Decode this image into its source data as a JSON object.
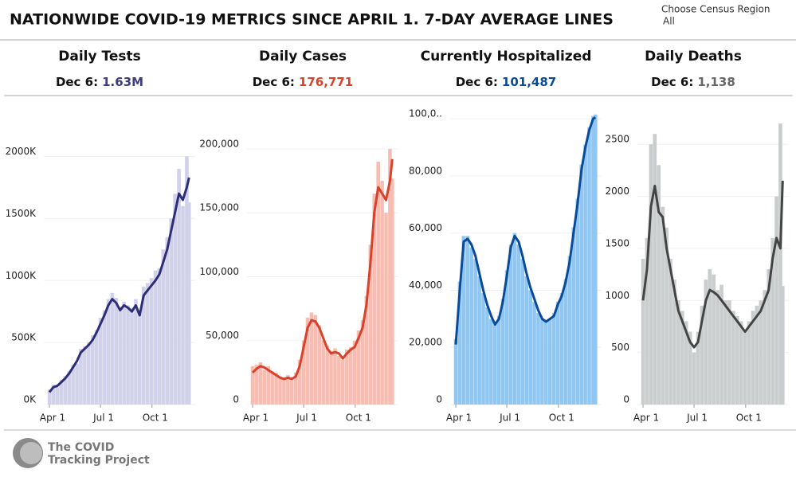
{
  "header": {
    "title": "NATIONWIDE COVID-19 METRICS SINCE APRIL 1. 7-DAY AVERAGE LINES",
    "region_label": "Choose Census Region",
    "region_value": "All"
  },
  "chart_data": [
    {
      "type": "bar_line",
      "title": "Daily Tests",
      "date_label": "Dec 6:",
      "latest_value": "1.63M",
      "x": [
        0,
        7,
        14,
        21,
        28,
        35,
        42,
        49,
        56,
        63,
        70,
        77,
        84,
        91,
        98,
        105,
        112,
        119,
        126,
        133,
        140,
        147,
        154,
        161,
        168,
        175,
        182,
        189,
        196,
        203,
        210,
        217,
        224,
        231,
        238,
        245,
        249
      ],
      "values": [
        120000,
        160000,
        140000,
        200000,
        230000,
        270000,
        320000,
        330000,
        450000,
        470000,
        500000,
        560000,
        600000,
        700000,
        760000,
        850000,
        900000,
        860000,
        790000,
        830000,
        800000,
        780000,
        850000,
        740000,
        950000,
        980000,
        1020000,
        1080000,
        1100000,
        1250000,
        1350000,
        1500000,
        1700000,
        1900000,
        1600000,
        2000000,
        1630000
      ],
      "average": [
        100000,
        140000,
        150000,
        180000,
        210000,
        250000,
        300000,
        350000,
        420000,
        450000,
        480000,
        520000,
        580000,
        650000,
        720000,
        800000,
        850000,
        820000,
        760000,
        800000,
        780000,
        750000,
        800000,
        720000,
        880000,
        920000,
        960000,
        1000000,
        1050000,
        1150000,
        1250000,
        1400000,
        1550000,
        1700000,
        1650000,
        1750000,
        1830000
      ],
      "xlim": [
        -10,
        260
      ],
      "xticks": [
        {
          "value": 0,
          "label": "Apr 1"
        },
        {
          "value": 91,
          "label": "Jul 1"
        },
        {
          "value": 183,
          "label": "Oct 1"
        }
      ],
      "ylim": [
        0,
        2350000
      ],
      "yticks": [
        {
          "value": 0,
          "label": "0K"
        },
        {
          "value": 500000,
          "label": "500K"
        },
        {
          "value": 1000000,
          "label": "1000K"
        },
        {
          "value": 1500000,
          "label": "1500K"
        },
        {
          "value": 2000000,
          "label": "2000K"
        }
      ],
      "bar_color": "#d1d1ea",
      "line_color": "#2e2e78",
      "value_color": "#3b3b7e",
      "grid": true
    },
    {
      "type": "bar_line",
      "title": "Daily Cases",
      "date_label": "Dec 6:",
      "latest_value": "176,771",
      "x": [
        0,
        7,
        14,
        21,
        28,
        35,
        42,
        49,
        56,
        63,
        70,
        77,
        84,
        91,
        98,
        105,
        112,
        119,
        126,
        133,
        140,
        147,
        154,
        161,
        168,
        175,
        182,
        189,
        196,
        203,
        210,
        217,
        224,
        231,
        238,
        245,
        249
      ],
      "values": [
        30000,
        31000,
        33000,
        27000,
        30000,
        26000,
        25000,
        22000,
        21000,
        23000,
        19000,
        25000,
        35000,
        50000,
        68000,
        72000,
        70000,
        62000,
        50000,
        46000,
        42000,
        44000,
        38000,
        35000,
        43000,
        45000,
        50000,
        58000,
        66000,
        85000,
        125000,
        165000,
        190000,
        175000,
        150000,
        200000,
        176771
      ],
      "average": [
        25000,
        28000,
        30000,
        29000,
        27000,
        25000,
        23000,
        21000,
        20000,
        21000,
        20000,
        22000,
        30000,
        45000,
        60000,
        66000,
        65000,
        60000,
        52000,
        44000,
        40000,
        41000,
        40000,
        36000,
        40000,
        43000,
        45000,
        52000,
        60000,
        78000,
        110000,
        150000,
        170000,
        165000,
        160000,
        175000,
        192000
      ],
      "xlim": [
        -10,
        260
      ],
      "xticks": [
        {
          "value": 0,
          "label": "Apr 1"
        },
        {
          "value": 91,
          "label": "Jul 1"
        },
        {
          "value": 183,
          "label": "Oct 1"
        }
      ],
      "ylim": [
        0,
        228000
      ],
      "yticks": [
        0,
        {
          "value": 50000,
          "label": "50,000"
        },
        {
          "value": 100000,
          "label": "100,000"
        },
        {
          "value": 150000,
          "label": "150,000"
        },
        {
          "value": 200000,
          "label": "200,000"
        }
      ],
      "bar_color": "#f8bdb2",
      "line_color": "#d9412a",
      "value_color": "#d9412a",
      "grid": true
    },
    {
      "type": "bar_line",
      "title": "Currently Hospitalized",
      "date_label": "Dec 6:",
      "latest_value": "101,487",
      "x": [
        0,
        7,
        14,
        21,
        28,
        35,
        42,
        49,
        56,
        63,
        70,
        77,
        84,
        91,
        98,
        105,
        112,
        119,
        126,
        133,
        140,
        147,
        154,
        161,
        168,
        175,
        182,
        189,
        196,
        203,
        210,
        217,
        224,
        231,
        238,
        245,
        249
      ],
      "values": [
        23000,
        43000,
        59000,
        59000,
        55000,
        51000,
        45000,
        39000,
        34000,
        30000,
        28000,
        31000,
        37000,
        47000,
        56000,
        60000,
        56000,
        51000,
        45000,
        40000,
        36000,
        32000,
        30000,
        29000,
        30000,
        32000,
        36000,
        39000,
        44000,
        52000,
        62000,
        72000,
        84000,
        91000,
        97000,
        101000,
        101487
      ],
      "average": [
        21000,
        40000,
        57000,
        58000,
        56000,
        52000,
        46000,
        40000,
        35000,
        31000,
        28000,
        30000,
        36000,
        45000,
        55000,
        59000,
        57000,
        52000,
        46000,
        41000,
        37000,
        33000,
        30000,
        29000,
        30000,
        31000,
        35000,
        38000,
        43000,
        50000,
        60000,
        70000,
        82000,
        90000,
        96000,
        100000,
        100500
      ],
      "xlim": [
        -10,
        260
      ],
      "xticks": [
        {
          "value": 0,
          "label": "Apr 1"
        },
        {
          "value": 91,
          "label": "Jul 1"
        },
        {
          "value": 183,
          "label": "Oct 1"
        }
      ],
      "ylim": [
        0,
        102000
      ],
      "yticks": [
        0,
        {
          "value": 20000,
          "label": "20,000"
        },
        {
          "value": 40000,
          "label": "40,000"
        },
        {
          "value": 60000,
          "label": "60,000"
        },
        {
          "value": 80000,
          "label": "80,000"
        },
        {
          "value": 100000,
          "label": "100,0.."
        }
      ],
      "bar_color": "#8fc7f2",
      "line_color": "#0a4a9a",
      "value_color": "#0a4a9a",
      "grid": true
    },
    {
      "type": "bar_line",
      "title": "Daily Deaths",
      "date_label": "Dec 6:",
      "latest_value": "1,138",
      "x": [
        0,
        7,
        14,
        21,
        28,
        35,
        42,
        49,
        56,
        63,
        70,
        77,
        84,
        91,
        98,
        105,
        112,
        119,
        126,
        133,
        140,
        147,
        154,
        161,
        168,
        175,
        182,
        189,
        196,
        203,
        210,
        217,
        224,
        231,
        238,
        245,
        249
      ],
      "values": [
        1400,
        1600,
        2500,
        2600,
        2300,
        1900,
        1700,
        1400,
        1200,
        1000,
        900,
        800,
        700,
        500,
        700,
        950,
        1200,
        1300,
        1250,
        1100,
        1150,
        1000,
        1000,
        900,
        850,
        800,
        700,
        800,
        900,
        950,
        1000,
        1100,
        1300,
        1600,
        2000,
        2700,
        1138
      ],
      "average": [
        1000,
        1300,
        1900,
        2100,
        1850,
        1800,
        1500,
        1300,
        1100,
        900,
        800,
        700,
        600,
        550,
        600,
        800,
        1000,
        1100,
        1080,
        1050,
        1000,
        950,
        900,
        850,
        800,
        750,
        700,
        750,
        800,
        850,
        900,
        1000,
        1100,
        1400,
        1600,
        1500,
        2150
      ],
      "xlim": [
        -10,
        260
      ],
      "xticks": [
        {
          "value": 0,
          "label": "Apr 1"
        },
        {
          "value": 91,
          "label": "Jul 1"
        },
        {
          "value": 183,
          "label": "Oct 1"
        }
      ],
      "ylim": [
        0,
        2800
      ],
      "yticks": [
        0,
        500,
        1000,
        1500,
        2000,
        2500
      ],
      "bar_color": "#c9cdcd",
      "line_color": "#444444",
      "value_color": "#666666",
      "grid": true
    }
  ],
  "footer": {
    "logo_line1": "The COVID",
    "logo_line2": "Tracking Project"
  }
}
